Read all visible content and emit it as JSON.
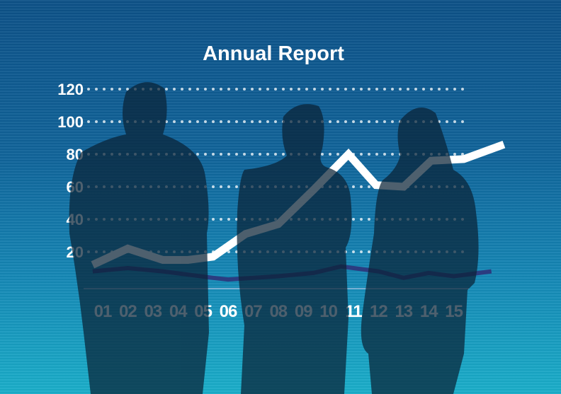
{
  "chart_data": {
    "type": "line",
    "title": "Annual Report",
    "categories": [
      "01",
      "02",
      "03",
      "04",
      "05",
      "06",
      "07",
      "08",
      "09",
      "10",
      "11",
      "12",
      "13",
      "14",
      "15"
    ],
    "yticks": [
      20,
      40,
      60,
      80,
      100,
      120
    ],
    "ylim": [
      0,
      120
    ],
    "grid": "dotted horizontal",
    "series": [
      {
        "color": "#ffffff",
        "x": [
          0.6,
          2,
          3.4,
          4.4,
          5.4,
          6.7,
          8,
          9.4,
          10.8,
          11.9,
          13,
          14.1,
          15.4,
          17
        ],
        "values": [
          12,
          22,
          15,
          15,
          17,
          31,
          37,
          58,
          80,
          61,
          60,
          76,
          77,
          86
        ]
      },
      {
        "color": "#2b3c80",
        "x": [
          0.6,
          2,
          3.4,
          5.4,
          6,
          8,
          9.4,
          10.5,
          12,
          13,
          14,
          15,
          16.5
        ],
        "values": [
          8,
          10,
          8,
          4,
          3,
          5,
          7,
          11,
          8,
          4,
          7,
          5,
          8
        ]
      }
    ]
  },
  "colors": {
    "silhouette": "#0a2236",
    "background_top": "#0d5187",
    "background_bottom": "#1aaec9"
  }
}
